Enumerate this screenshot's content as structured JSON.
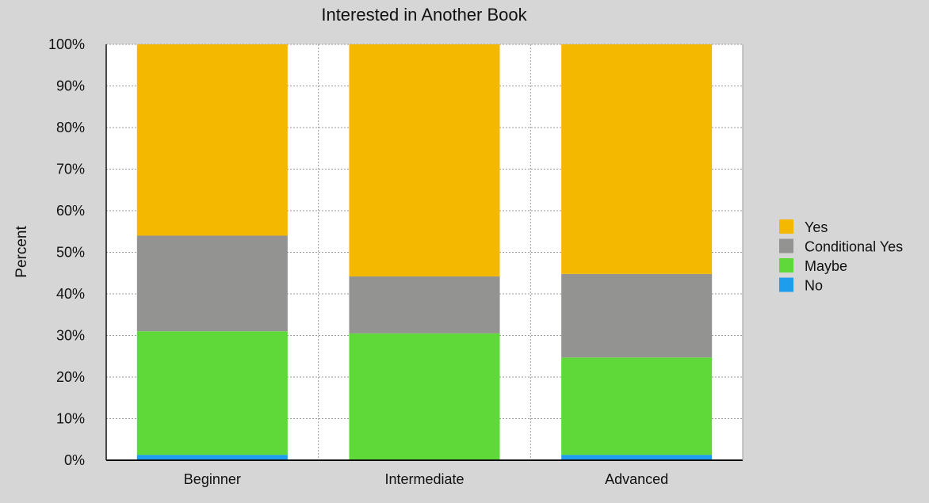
{
  "chart_data": {
    "type": "bar",
    "stacked": true,
    "title": "Interested in Another Book",
    "xlabel": "",
    "ylabel": "Percent",
    "ylim": [
      0,
      100
    ],
    "ytick_labels": [
      "0%",
      "10%",
      "20%",
      "30%",
      "40%",
      "50%",
      "60%",
      "70%",
      "80%",
      "90%",
      "100%"
    ],
    "categories": [
      "Beginner",
      "Intermediate",
      "Advanced"
    ],
    "series": [
      {
        "name": "No",
        "color": "#1f9ded",
        "values": [
          1.3,
          0,
          1.3
        ]
      },
      {
        "name": "Maybe",
        "color": "#5fd93a",
        "values": [
          29.7,
          30.5,
          23.4
        ]
      },
      {
        "name": "Conditional Yes",
        "color": "#939391",
        "values": [
          23.0,
          13.7,
          20.1
        ]
      },
      {
        "name": "Yes",
        "color": "#f5b800",
        "values": [
          46.0,
          55.8,
          55.2
        ]
      }
    ],
    "legend": {
      "position": "right",
      "order": [
        "Yes",
        "Conditional Yes",
        "Maybe",
        "No"
      ]
    },
    "grid": true
  }
}
